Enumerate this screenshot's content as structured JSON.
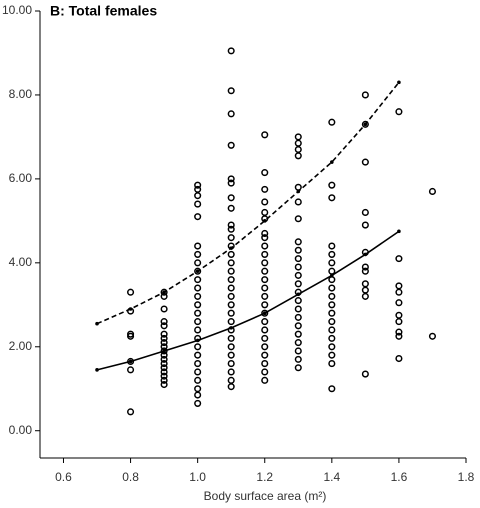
{
  "chart_data": {
    "type": "scatter",
    "title": "B: Total females",
    "x_label": "Body surface area (m²)",
    "xlim": [
      0.53,
      1.8
    ],
    "ylim": [
      -0.65,
      10
    ],
    "xticks": [
      0.6,
      0.8,
      {
        "value": 1,
        "label": "1.0"
      },
      1.2,
      1.4,
      1.6,
      1.8
    ],
    "yticks": [
      {
        "value": 0,
        "label": "0.00"
      },
      {
        "value": 2,
        "label": "2.00"
      },
      {
        "value": 4,
        "label": "4.00"
      },
      {
        "value": 6,
        "label": "6.00"
      },
      {
        "value": 8,
        "label": "8.00"
      },
      {
        "value": 10,
        "label": "10.00"
      }
    ],
    "grid": false,
    "series": [
      {
        "color": "#000000",
        "marker": "open-circle",
        "line": "none",
        "x": [
          0.8,
          0.8,
          0.8,
          0.8,
          0.8,
          0.8,
          0.8,
          0.9,
          0.9,
          0.9,
          0.9,
          0.9,
          0.9,
          0.9,
          0.9,
          0.9,
          0.9,
          0.9,
          0.9,
          0.9,
          0.9,
          0.9,
          0.9,
          0.9,
          0.9,
          1,
          1,
          1,
          1,
          1,
          1,
          1,
          1,
          1,
          1,
          1,
          1,
          1,
          1,
          1,
          1,
          1,
          1,
          1,
          1,
          1,
          1,
          1,
          1,
          1,
          1.1,
          1.1,
          1.1,
          1.1,
          1.1,
          1.1,
          1.1,
          1.1,
          1.1,
          1.1,
          1.1,
          1.1,
          1.1,
          1.1,
          1.1,
          1.1,
          1.1,
          1.1,
          1.1,
          1.1,
          1.1,
          1.1,
          1.1,
          1.1,
          1.1,
          1.1,
          1.1,
          1.1,
          1.1,
          1.2,
          1.2,
          1.2,
          1.2,
          1.2,
          1.2,
          1.2,
          1.2,
          1.2,
          1.2,
          1.2,
          1.2,
          1.2,
          1.2,
          1.2,
          1.2,
          1.2,
          1.2,
          1.2,
          1.2,
          1.2,
          1.2,
          1.2,
          1.2,
          1.2,
          1.3,
          1.3,
          1.3,
          1.3,
          1.3,
          1.3,
          1.3,
          1.3,
          1.3,
          1.3,
          1.3,
          1.3,
          1.3,
          1.3,
          1.3,
          1.3,
          1.3,
          1.3,
          1.3,
          1.3,
          1.3,
          1.3,
          1.3,
          1.4,
          1.4,
          1.4,
          1.4,
          1.4,
          1.4,
          1.4,
          1.4,
          1.4,
          1.4,
          1.4,
          1.4,
          1.4,
          1.4,
          1.4,
          1.4,
          1.4,
          1.4,
          1.4,
          1.5,
          1.5,
          1.5,
          1.5,
          1.5,
          1.5,
          1.5,
          1.5,
          1.5,
          1.5,
          1.5,
          1.5,
          1.6,
          1.6,
          1.6,
          1.6,
          1.6,
          1.6,
          1.6,
          1.6,
          1.6,
          1.6,
          1.7,
          1.7
        ],
        "values": [
          0.45,
          1.45,
          1.65,
          2.25,
          2.3,
          2.85,
          3.3,
          1.1,
          1.2,
          1.3,
          1.4,
          1.5,
          1.6,
          1.7,
          1.8,
          1.9,
          2.0,
          2.1,
          2.2,
          2.3,
          2.5,
          2.6,
          2.9,
          3.2,
          3.3,
          0.65,
          0.85,
          1.0,
          1.2,
          1.4,
          1.6,
          1.8,
          2.0,
          2.2,
          2.4,
          2.6,
          2.8,
          3.0,
          3.2,
          3.4,
          3.6,
          3.8,
          4.0,
          4.2,
          4.4,
          5.1,
          5.4,
          5.6,
          5.75,
          5.85,
          1.05,
          1.2,
          1.4,
          1.6,
          1.8,
          2.0,
          2.2,
          2.4,
          2.6,
          2.8,
          3.0,
          3.2,
          3.4,
          3.6,
          3.8,
          4.0,
          4.2,
          4.4,
          4.6,
          4.8,
          4.9,
          5.3,
          5.55,
          5.9,
          6.0,
          6.8,
          7.55,
          8.1,
          9.05,
          1.2,
          1.4,
          1.6,
          1.8,
          2.0,
          2.2,
          2.4,
          2.6,
          2.8,
          3.0,
          3.2,
          3.4,
          3.6,
          3.8,
          4.0,
          4.2,
          4.4,
          4.6,
          4.7,
          5.05,
          5.2,
          5.45,
          5.75,
          6.15,
          7.05,
          1.5,
          1.7,
          1.9,
          2.1,
          2.3,
          2.5,
          2.7,
          2.9,
          3.1,
          3.3,
          3.5,
          3.7,
          3.9,
          4.1,
          4.3,
          4.5,
          5.05,
          5.45,
          5.8,
          6.55,
          6.7,
          6.85,
          7.0,
          1.0,
          1.6,
          1.8,
          2.0,
          2.2,
          2.4,
          2.6,
          2.8,
          3.0,
          3.2,
          3.4,
          3.6,
          3.8,
          4.0,
          4.2,
          4.4,
          5.55,
          5.85,
          7.35,
          1.35,
          3.2,
          3.35,
          3.5,
          3.8,
          3.9,
          4.25,
          4.9,
          5.2,
          6.4,
          7.3,
          8.0,
          1.72,
          2.25,
          2.35,
          2.6,
          2.75,
          3.05,
          3.3,
          3.45,
          4.1,
          7.6,
          2.25,
          5.7
        ]
      },
      {
        "color": "#000000",
        "marker": "dot",
        "line": "dashed",
        "x": [
          0.7,
          0.8,
          0.9,
          1,
          1.1,
          1.2,
          1.3,
          1.4,
          1.5,
          1.6
        ],
        "values": [
          2.55,
          2.9,
          3.3,
          3.8,
          4.35,
          5.0,
          5.7,
          6.4,
          7.3,
          8.3
        ]
      },
      {
        "color": "#000000",
        "marker": "dot",
        "line": "solid",
        "x": [
          0.7,
          0.8,
          0.9,
          1,
          1.1,
          1.2,
          1.3,
          1.4,
          1.5,
          1.6
        ],
        "values": [
          1.45,
          1.65,
          1.9,
          2.15,
          2.45,
          2.8,
          3.25,
          3.7,
          4.2,
          4.75
        ]
      }
    ]
  }
}
